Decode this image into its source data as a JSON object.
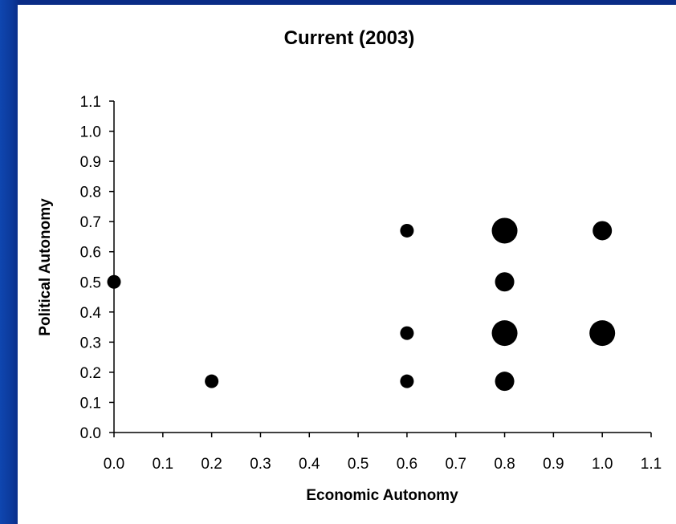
{
  "chart_data": {
    "type": "scatter",
    "title": "Current (2003)",
    "xlabel": "Economic Autonomy",
    "ylabel": "Political Autonomy",
    "xlim": [
      0.0,
      1.1
    ],
    "ylim": [
      0.0,
      1.1
    ],
    "x_ticks": [
      "0.0",
      "0.1",
      "0.2",
      "0.3",
      "0.4",
      "0.5",
      "0.6",
      "0.7",
      "0.8",
      "0.9",
      "1.0",
      "1.1"
    ],
    "y_ticks": [
      "0.0",
      "0.1",
      "0.2",
      "0.3",
      "0.4",
      "0.5",
      "0.6",
      "0.7",
      "0.8",
      "0.9",
      "1.0",
      "1.1"
    ],
    "grid": false,
    "legend": "none",
    "marker_color": "#000000",
    "points": [
      {
        "x": 0.0,
        "y": 0.5,
        "size": 1
      },
      {
        "x": 0.2,
        "y": 0.17,
        "size": 1
      },
      {
        "x": 0.6,
        "y": 0.67,
        "size": 1
      },
      {
        "x": 0.6,
        "y": 0.33,
        "size": 1
      },
      {
        "x": 0.6,
        "y": 0.17,
        "size": 1
      },
      {
        "x": 0.8,
        "y": 0.67,
        "size": 3
      },
      {
        "x": 0.8,
        "y": 0.5,
        "size": 2
      },
      {
        "x": 0.8,
        "y": 0.33,
        "size": 3
      },
      {
        "x": 0.8,
        "y": 0.17,
        "size": 2
      },
      {
        "x": 1.0,
        "y": 0.67,
        "size": 2
      },
      {
        "x": 1.0,
        "y": 0.33,
        "size": 3
      }
    ]
  }
}
